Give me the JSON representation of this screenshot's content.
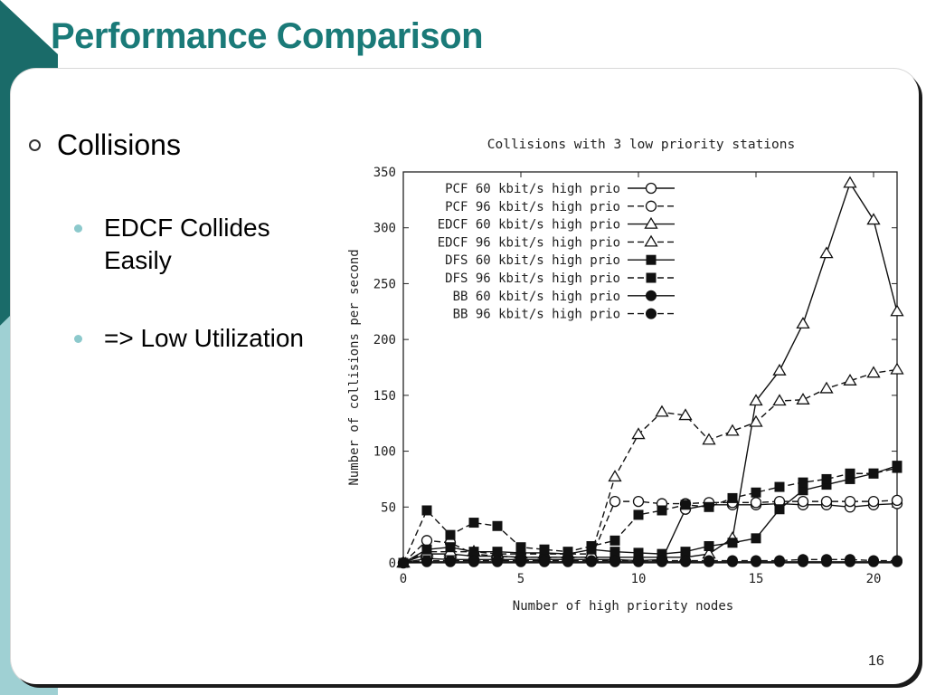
{
  "slide": {
    "title": "Performance Comparison",
    "bullet_main": "Collisions",
    "sub_bullets": [
      "EDCF Collides Easily",
      "=> Low Utilization"
    ],
    "page_number": "16"
  },
  "colors": {
    "title": "#1a7a78",
    "deco_dark": "#1a6b69",
    "deco_light": "#9fd0d3",
    "bullet_dot": "#8cc9cc"
  },
  "chart_data": {
    "type": "line",
    "title": "Collisions with 3 low priority stations",
    "xlabel": "Number of high priority nodes",
    "ylabel": "Number of collisions per second",
    "xlim": [
      0,
      21
    ],
    "ylim": [
      0,
      350
    ],
    "xticks": [
      0,
      5,
      10,
      15,
      20
    ],
    "yticks": [
      0,
      50,
      100,
      150,
      200,
      250,
      300,
      350
    ],
    "legend_position": "top-left",
    "grid": false,
    "x": [
      0,
      1,
      2,
      3,
      4,
      5,
      6,
      7,
      8,
      9,
      10,
      11,
      12,
      13,
      14,
      15,
      16,
      17,
      18,
      19,
      20,
      21
    ],
    "series": [
      {
        "name": "PCF 60 kbit/s high prio",
        "marker": "circle-open",
        "dash": false,
        "values": [
          0,
          4,
          3,
          3,
          3,
          3,
          3,
          3,
          3,
          3,
          2,
          3,
          48,
          52,
          52,
          52,
          53,
          52,
          52,
          50,
          52,
          53
        ]
      },
      {
        "name": "PCF 96 kbit/s high prio",
        "marker": "circle-open",
        "dash": true,
        "values": [
          0,
          20,
          18,
          8,
          6,
          5,
          5,
          5,
          5,
          55,
          55,
          53,
          53,
          54,
          54,
          54,
          55,
          55,
          55,
          55,
          55,
          56
        ]
      },
      {
        "name": "EDCF 60 kbit/s high prio",
        "marker": "triangle-open",
        "dash": false,
        "values": [
          0,
          8,
          8,
          6,
          6,
          5,
          5,
          5,
          5,
          5,
          5,
          5,
          5,
          8,
          22,
          145,
          172,
          214,
          277,
          340,
          307,
          225
        ]
      },
      {
        "name": "EDCF 96 kbit/s high prio",
        "marker": "triangle-open",
        "dash": true,
        "values": [
          0,
          10,
          10,
          10,
          8,
          8,
          8,
          8,
          8,
          77,
          115,
          135,
          132,
          110,
          118,
          126,
          145,
          146,
          156,
          163,
          170,
          173
        ]
      },
      {
        "name": "DFS 60 kbit/s high prio",
        "marker": "square-filled",
        "dash": false,
        "values": [
          0,
          12,
          14,
          10,
          10,
          9,
          9,
          8,
          12,
          10,
          9,
          8,
          10,
          15,
          18,
          22,
          48,
          65,
          70,
          75,
          80,
          87
        ]
      },
      {
        "name": "DFS 96 kbit/s high prio",
        "marker": "square-filled",
        "dash": true,
        "values": [
          0,
          47,
          25,
          36,
          33,
          14,
          12,
          10,
          15,
          20,
          43,
          47,
          52,
          50,
          58,
          63,
          68,
          72,
          75,
          80,
          80,
          85
        ]
      },
      {
        "name": "BB 60 kbit/s high prio",
        "marker": "circle-filled",
        "dash": false,
        "values": [
          0,
          1,
          1,
          1,
          1,
          1,
          1,
          1,
          1,
          1,
          1,
          1,
          1,
          1,
          1,
          1,
          1,
          1,
          1,
          1,
          1,
          1
        ]
      },
      {
        "name": "BB 96 kbit/s high prio",
        "marker": "circle-filled",
        "dash": true,
        "values": [
          0,
          2,
          2,
          2,
          2,
          2,
          2,
          2,
          2,
          2,
          2,
          2,
          2,
          2,
          2,
          2,
          2,
          3,
          3,
          3,
          2,
          2
        ]
      }
    ]
  }
}
